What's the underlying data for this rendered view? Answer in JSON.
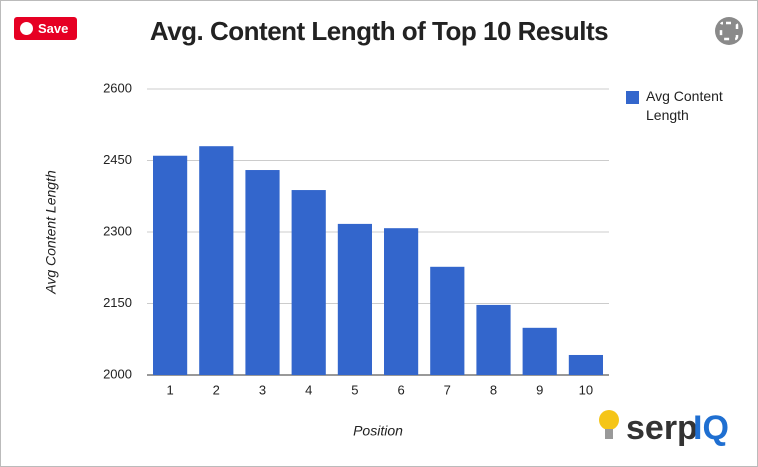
{
  "chart_data": {
    "type": "bar",
    "title": "Avg. Content Length of Top 10 Results",
    "x_label": "Position",
    "y_label": "Avg Content Length",
    "categories": [
      "1",
      "2",
      "3",
      "4",
      "5",
      "6",
      "7",
      "8",
      "9",
      "10"
    ],
    "series": [
      {
        "name": "Avg Content Length",
        "color": "#3366cc",
        "values": [
          2460,
          2480,
          2430,
          2388,
          2317,
          2308,
          2227,
          2147,
          2099,
          2042
        ]
      }
    ],
    "ylim": [
      2000,
      2600
    ],
    "yticks": [
      2000,
      2150,
      2300,
      2450,
      2600
    ],
    "grid": true,
    "legend": "right"
  },
  "ui": {
    "save_button": "Save",
    "logo": [
      "serp",
      "IQ"
    ]
  }
}
